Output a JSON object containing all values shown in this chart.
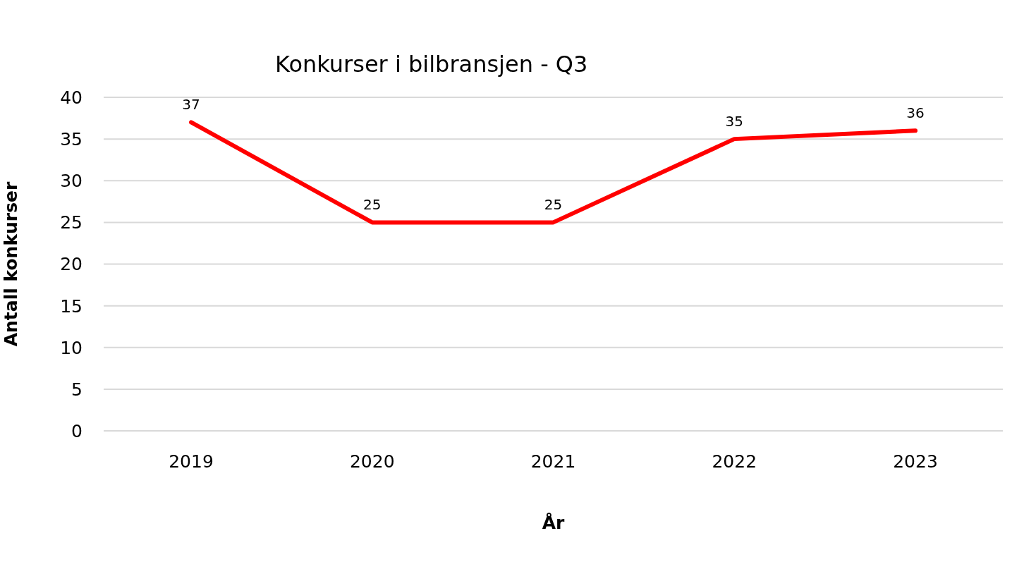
{
  "chart_data": {
    "type": "line",
    "title": "Konkurser i bilbransjen - Q3",
    "xlabel": "År",
    "ylabel": "Antall konkurser",
    "categories": [
      "2019",
      "2020",
      "2021",
      "2022",
      "2023"
    ],
    "series": [
      {
        "color": "#ff0000",
        "values": [
          37,
          25,
          25,
          35,
          36
        ]
      }
    ],
    "ylim": [
      0,
      40
    ],
    "yticks": [
      0,
      5,
      10,
      15,
      20,
      25,
      30,
      35,
      40
    ],
    "grid": "y",
    "data_labels": true,
    "marker": "none",
    "line_style": "solid",
    "legend": false
  }
}
